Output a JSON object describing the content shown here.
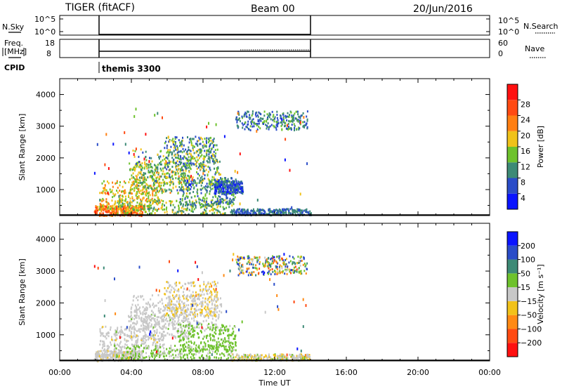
{
  "header": {
    "radar": "TIGER (fitACF)",
    "beam": "Beam 00",
    "date": "20/Jun/2016"
  },
  "top_panels": {
    "nsky_label": "N.Sky",
    "nsky_ticks": [
      "10^5",
      "10^0"
    ],
    "freq_label_1": "Freq.",
    "freq_label_2": "[MHz]",
    "freq_ticks": [
      "18",
      "8"
    ],
    "nsearch_label": "N.Search",
    "nsearch_ticks": [
      "10^5",
      "10^0"
    ],
    "nave_label": "Nave",
    "nave_ticks": [
      "60",
      "0"
    ],
    "cpid_label": "CPID",
    "cpid_value": "themis 3300",
    "data_window_hours": [
      2,
      14
    ]
  },
  "chart_data": [
    {
      "type": "heatmap",
      "name": "power",
      "ylabel": "Slant Range [km]",
      "yticks": [
        "1000",
        "2000",
        "3000",
        "4000"
      ],
      "ylim": [
        180,
        4500
      ],
      "xlim_hours": [
        0,
        24
      ],
      "colorbar_label": "Power [dB]",
      "colorbar_ticks": [
        "4",
        "8",
        "12",
        "16",
        "20",
        "24",
        "28"
      ],
      "colorbar_colors": [
        "#0a14ff",
        "#2a4cc8",
        "#3d8a76",
        "#6ec22c",
        "#f0c21a",
        "#ff7f12",
        "#ff4a12",
        "#ff1010"
      ],
      "colorbar_range": [
        0,
        32
      ],
      "regions": [
        {
          "t": [
            1.9,
            4.6
          ],
          "r": [
            200,
            520
          ],
          "v": [
            18,
            30
          ]
        },
        {
          "t": [
            2.2,
            5.8
          ],
          "r": [
            400,
            1300
          ],
          "v": [
            12,
            24
          ]
        },
        {
          "t": [
            3.8,
            7.2
          ],
          "r": [
            900,
            1900
          ],
          "v": [
            8,
            22
          ]
        },
        {
          "t": [
            5.8,
            8.8
          ],
          "r": [
            1600,
            2700
          ],
          "v": [
            4,
            18
          ]
        },
        {
          "t": [
            3.0,
            9.6
          ],
          "r": [
            250,
            700
          ],
          "v": [
            8,
            20
          ]
        },
        {
          "t": [
            6.5,
            9.8
          ],
          "r": [
            500,
            1400
          ],
          "v": [
            4,
            16
          ]
        },
        {
          "t": [
            8.6,
            10.2
          ],
          "r": [
            900,
            1300
          ],
          "v": [
            2,
            10
          ]
        },
        {
          "t": [
            9.8,
            13.8
          ],
          "r": [
            2900,
            3500
          ],
          "v": [
            4,
            14
          ]
        },
        {
          "t": [
            9.5,
            14.0
          ],
          "r": [
            220,
            420
          ],
          "v": [
            4,
            12
          ]
        },
        {
          "t": [
            4.0,
            9.0
          ],
          "r": [
            1200,
            2300
          ],
          "v": [
            6,
            20
          ]
        }
      ]
    },
    {
      "type": "heatmap",
      "name": "velocity",
      "ylabel": "Slant Range [km]",
      "yticks": [
        "1000",
        "2000",
        "3000",
        "4000"
      ],
      "ylim": [
        180,
        4500
      ],
      "xlim_hours": [
        0,
        24
      ],
      "xticks": [
        "00:00",
        "04:00",
        "08:00",
        "12:00",
        "16:00",
        "20:00",
        "00:00"
      ],
      "xlabel": "Time UT",
      "colorbar_label": "Velocity [m s⁻¹]",
      "colorbar_ticks": [
        "−200",
        "−100",
        "−50",
        "−15",
        "15",
        "50",
        "100",
        "200"
      ],
      "colorbar_colors": [
        "#ff1010",
        "#ff4a12",
        "#ff8a14",
        "#f2c21a",
        "#c8c8c8",
        "#6ec22c",
        "#3d8a76",
        "#2a4cc8",
        "#0a14ff"
      ],
      "colorbar_range": [
        -250,
        250
      ],
      "regions": [
        {
          "t": [
            1.9,
            4.6
          ],
          "r": [
            200,
            520
          ],
          "v": [
            -40,
            20
          ]
        },
        {
          "t": [
            2.2,
            5.8
          ],
          "r": [
            400,
            1300
          ],
          "v": [
            -30,
            20
          ]
        },
        {
          "t": [
            3.8,
            7.2
          ],
          "r": [
            900,
            1900
          ],
          "v": [
            -20,
            30
          ]
        },
        {
          "t": [
            5.8,
            8.8
          ],
          "r": [
            1600,
            2700
          ],
          "v": [
            -80,
            20
          ]
        },
        {
          "t": [
            3.0,
            9.6
          ],
          "r": [
            250,
            700
          ],
          "v": [
            10,
            60
          ]
        },
        {
          "t": [
            6.5,
            9.8
          ],
          "r": [
            500,
            1400
          ],
          "v": [
            20,
            80
          ]
        },
        {
          "t": [
            9.8,
            13.8
          ],
          "r": [
            2900,
            3500
          ],
          "v": [
            -150,
            220
          ]
        },
        {
          "t": [
            9.5,
            14.0
          ],
          "r": [
            220,
            420
          ],
          "v": [
            -60,
            40
          ]
        },
        {
          "t": [
            4.0,
            9.0
          ],
          "r": [
            1200,
            2300
          ],
          "v": [
            -20,
            20
          ]
        }
      ]
    }
  ]
}
